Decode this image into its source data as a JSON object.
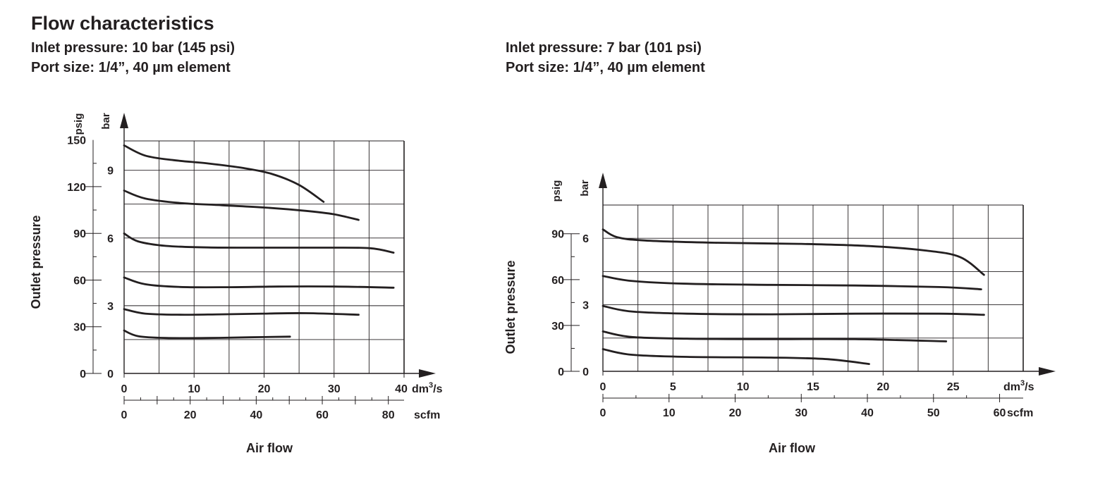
{
  "page": {
    "title": "Flow characteristics",
    "left_header": {
      "inlet": "Inlet pressure: 10 bar (145 psi)",
      "port": "Port size: 1/4”, 40 µm element"
    },
    "right_header": {
      "inlet": "Inlet pressure: 7 bar (101 psi)",
      "port": "Port size: 1/4”, 40 µm element"
    }
  },
  "chart_data": [
    {
      "type": "line",
      "title": "Inlet pressure: 10 bar (145 psi)",
      "ylabel": "Outlet pressure",
      "xlabel": "Air flow",
      "x_unit": "dm³/s",
      "x2_unit": "scfm",
      "y_unit": "bar",
      "y2_unit": "psig",
      "xlim": [
        0,
        40
      ],
      "ylim": [
        0,
        10.3
      ],
      "x_ticks": [
        0,
        10,
        20,
        30,
        40
      ],
      "x2_ticks": [
        0,
        20,
        40,
        60,
        80
      ],
      "x2_factor": 2.119,
      "y_bar_ticks": [
        0,
        3,
        6,
        9
      ],
      "y_psig_ticks": [
        0,
        30,
        60,
        90,
        120,
        150
      ],
      "psi_per_bar": 14.5038,
      "grid_x": [
        5,
        10,
        15,
        20,
        25,
        30,
        35
      ],
      "grid_y": [
        1.5,
        3,
        4.5,
        6,
        7.5,
        9
      ],
      "series": [
        {
          "name": "curve-1",
          "points": [
            [
              0,
              10.1
            ],
            [
              3,
              9.65
            ],
            [
              7,
              9.45
            ],
            [
              12,
              9.3
            ],
            [
              17,
              9.1
            ],
            [
              21,
              8.85
            ],
            [
              25,
              8.35
            ],
            [
              28.5,
              7.6
            ]
          ]
        },
        {
          "name": "curve-2",
          "points": [
            [
              0,
              8.1
            ],
            [
              3,
              7.75
            ],
            [
              8,
              7.55
            ],
            [
              14,
              7.45
            ],
            [
              20,
              7.35
            ],
            [
              26,
              7.2
            ],
            [
              30,
              7.05
            ],
            [
              33.5,
              6.8
            ]
          ]
        },
        {
          "name": "curve-3",
          "points": [
            [
              0,
              6.2
            ],
            [
              2,
              5.85
            ],
            [
              6,
              5.65
            ],
            [
              12,
              5.58
            ],
            [
              20,
              5.57
            ],
            [
              28,
              5.57
            ],
            [
              35,
              5.55
            ],
            [
              38.5,
              5.35
            ]
          ]
        },
        {
          "name": "curve-4",
          "points": [
            [
              0,
              4.25
            ],
            [
              3,
              3.95
            ],
            [
              8,
              3.83
            ],
            [
              15,
              3.82
            ],
            [
              22,
              3.85
            ],
            [
              30,
              3.85
            ],
            [
              38.5,
              3.8
            ]
          ]
        },
        {
          "name": "curve-5",
          "points": [
            [
              0,
              2.85
            ],
            [
              3,
              2.65
            ],
            [
              8,
              2.6
            ],
            [
              14,
              2.62
            ],
            [
              20,
              2.65
            ],
            [
              26,
              2.67
            ],
            [
              33.5,
              2.6
            ]
          ]
        },
        {
          "name": "curve-6",
          "points": [
            [
              0,
              1.9
            ],
            [
              2,
              1.65
            ],
            [
              6,
              1.57
            ],
            [
              12,
              1.57
            ],
            [
              18,
              1.6
            ],
            [
              23.7,
              1.63
            ]
          ]
        }
      ]
    },
    {
      "type": "line",
      "title": "Inlet pressure: 7 bar (101 psi)",
      "ylabel": "Outlet pressure",
      "xlabel": "Air flow",
      "x_unit": "dm³/s",
      "x2_unit": "scfm",
      "y_unit": "bar",
      "y2_unit": "psig",
      "xlim": [
        0,
        30
      ],
      "ylim": [
        0,
        7.5
      ],
      "x_ticks": [
        0,
        5,
        10,
        15,
        20,
        25
      ],
      "x2_ticks": [
        0,
        10,
        20,
        30,
        40,
        50,
        60
      ],
      "x2_factor": 2.119,
      "y_bar_ticks": [
        0,
        3,
        6
      ],
      "y_psig_ticks": [
        0,
        30,
        60,
        90
      ],
      "psi_per_bar": 14.5038,
      "grid_x": [
        2.5,
        5,
        7.5,
        10,
        12.5,
        15,
        17.5,
        20,
        22.5,
        25,
        27.5
      ],
      "grid_y": [
        1.5,
        3,
        4.5,
        6
      ],
      "series": [
        {
          "name": "curve-1",
          "points": [
            [
              0,
              6.4
            ],
            [
              1,
              6.05
            ],
            [
              3,
              5.9
            ],
            [
              8,
              5.8
            ],
            [
              14,
              5.75
            ],
            [
              19,
              5.65
            ],
            [
              23,
              5.45
            ],
            [
              25.5,
              5.15
            ],
            [
              27.2,
              4.35
            ]
          ]
        },
        {
          "name": "curve-2",
          "points": [
            [
              0,
              4.3
            ],
            [
              2,
              4.08
            ],
            [
              6,
              3.95
            ],
            [
              12,
              3.9
            ],
            [
              18,
              3.87
            ],
            [
              24,
              3.8
            ],
            [
              27,
              3.7
            ]
          ]
        },
        {
          "name": "curve-3",
          "points": [
            [
              0,
              2.95
            ],
            [
              2,
              2.7
            ],
            [
              6,
              2.6
            ],
            [
              12,
              2.57
            ],
            [
              18,
              2.6
            ],
            [
              24,
              2.6
            ],
            [
              27.2,
              2.55
            ]
          ]
        },
        {
          "name": "curve-4",
          "points": [
            [
              0,
              1.8
            ],
            [
              2,
              1.55
            ],
            [
              6,
              1.47
            ],
            [
              12,
              1.45
            ],
            [
              18,
              1.45
            ],
            [
              24.5,
              1.35
            ]
          ]
        },
        {
          "name": "curve-5",
          "points": [
            [
              0,
              1.0
            ],
            [
              2,
              0.75
            ],
            [
              6,
              0.65
            ],
            [
              12,
              0.62
            ],
            [
              16,
              0.55
            ],
            [
              19,
              0.33
            ]
          ]
        }
      ]
    }
  ]
}
